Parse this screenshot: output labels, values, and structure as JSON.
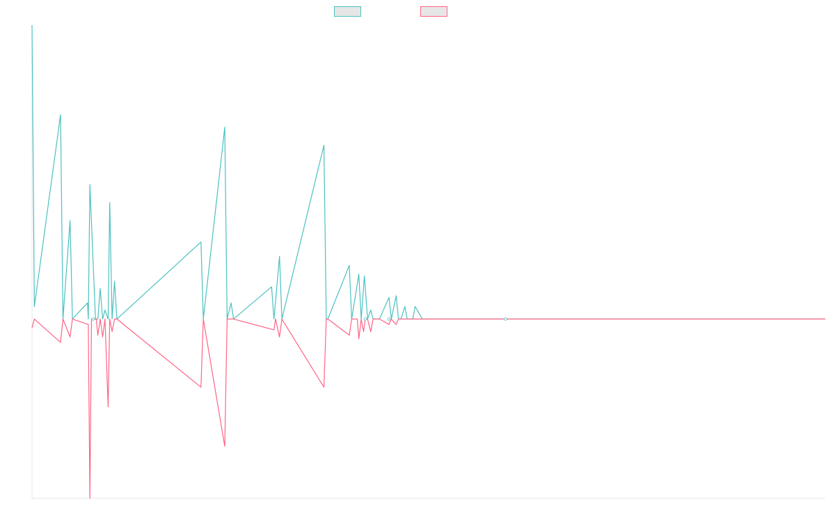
{
  "chart_data": {
    "type": "line",
    "title": "",
    "xlabel": "",
    "ylabel": "",
    "legend": "top-center",
    "grid": false,
    "xlim": [
      0,
      1000
    ],
    "ylim": [
      -100,
      164
    ],
    "colors": {
      "positive": "#4bc0c0",
      "negative": "#ff6384",
      "axis": "#e6e6e6"
    },
    "series": [
      {
        "name": "",
        "color": "#4bc0c0",
        "x": [
          0,
          3,
          36,
          39,
          48,
          51,
          70,
          71,
          73,
          80,
          81,
          83,
          86,
          89,
          92,
          96,
          98,
          101,
          104,
          107,
          213,
          216,
          243,
          246,
          251,
          254,
          302,
          305,
          312,
          315,
          368,
          371,
          373,
          400,
          403,
          412,
          415,
          419,
          423,
          427,
          430,
          435,
          438,
          450,
          453,
          459,
          462,
          465,
          470,
          473,
          480,
          483,
          492,
          495,
          597,
          1000
        ],
        "y": [
          164,
          7,
          114,
          0,
          55,
          0,
          9,
          0,
          75,
          0,
          0,
          0,
          17,
          0,
          5,
          0,
          65,
          0,
          21,
          0,
          43,
          0,
          107,
          0,
          9,
          0,
          18,
          0,
          35,
          0,
          97,
          0,
          0,
          30,
          0,
          25,
          0,
          24,
          0,
          5,
          0,
          0,
          0,
          12,
          0,
          13,
          0,
          0,
          7,
          0,
          0,
          7,
          0,
          0,
          0,
          0
        ]
      },
      {
        "name": "",
        "color": "#ff6384",
        "x": [
          0,
          3,
          36,
          39,
          48,
          51,
          71,
          73,
          75,
          81,
          83,
          86,
          89,
          92,
          96,
          98,
          101,
          104,
          107,
          213,
          216,
          243,
          246,
          251,
          254,
          305,
          307,
          312,
          315,
          368,
          371,
          373,
          400,
          403,
          410,
          412,
          415,
          418,
          420,
          423,
          427,
          430,
          438,
          450,
          453,
          459,
          462,
          465,
          1000
        ],
        "y": [
          -5,
          0,
          -13,
          0,
          -10,
          0,
          -3,
          -100,
          0,
          0,
          -9,
          0,
          -10,
          0,
          -49,
          0,
          -7,
          0,
          0,
          -38,
          0,
          -71,
          0,
          0,
          0,
          -6,
          0,
          -10,
          0,
          -38,
          0,
          0,
          -9,
          0,
          0,
          -11,
          0,
          -7,
          0,
          0,
          -7,
          0,
          0,
          -3,
          0,
          -3,
          0,
          0,
          0
        ]
      }
    ],
    "markers": [
      {
        "x": 77,
        "y": 0
      },
      {
        "x": 420,
        "y": 0
      },
      {
        "x": 450,
        "y": 0
      },
      {
        "x": 597,
        "y": 0
      }
    ]
  }
}
